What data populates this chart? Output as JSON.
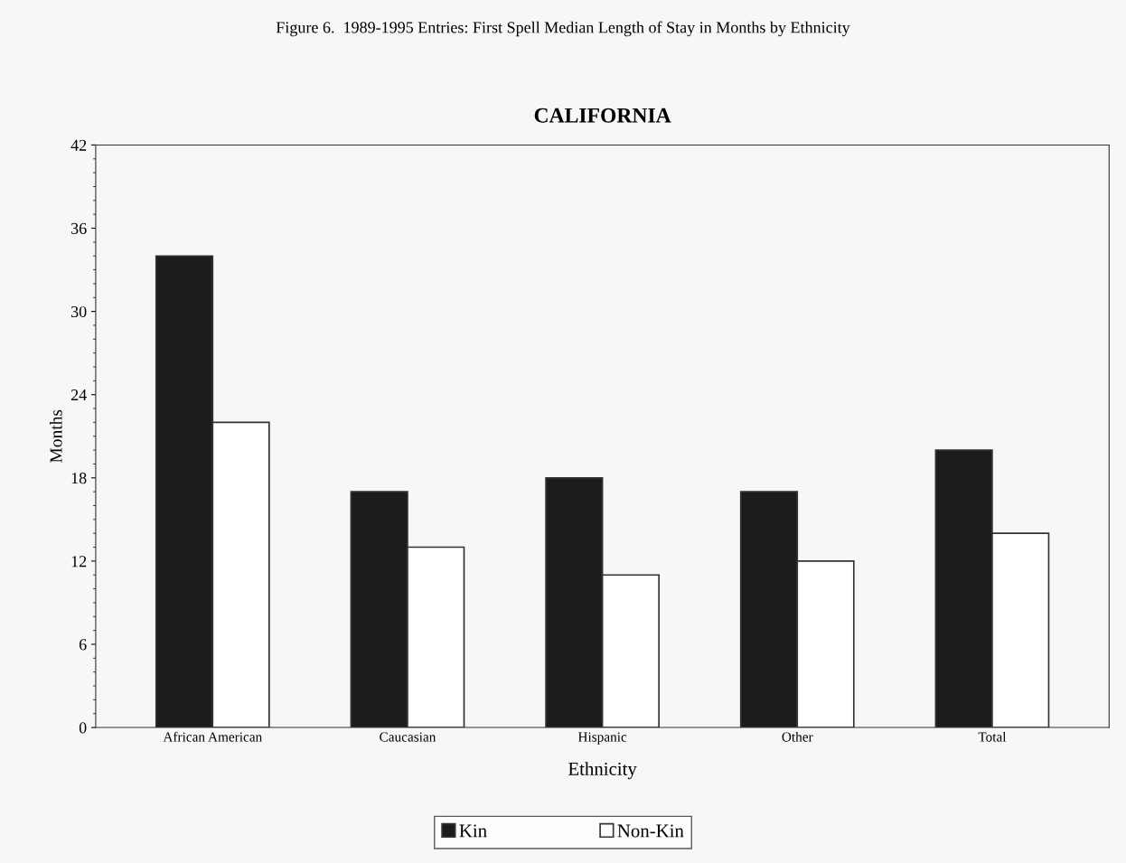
{
  "chart_data": {
    "type": "bar",
    "title": "Figure 6.  1989-1995 Entries: First Spell Median Length of Stay in Months by Ethnicity",
    "subtitle": "CALIFORNIA",
    "xlabel": "Ethnicity",
    "ylabel": "Months",
    "categories": [
      "African American",
      "Caucasian",
      "Hispanic",
      "Other",
      "Total"
    ],
    "series": [
      {
        "name": "Kin",
        "color": "#1c1c1c",
        "values": [
          34,
          17,
          18,
          17,
          20
        ]
      },
      {
        "name": "Non-Kin",
        "color": "#ffffff",
        "values": [
          22,
          13,
          11,
          12,
          14
        ]
      }
    ],
    "ylim": [
      0,
      42
    ],
    "yticks": [
      0,
      6,
      12,
      18,
      24,
      30,
      36,
      42
    ],
    "grid": false,
    "legend": "bottom"
  }
}
